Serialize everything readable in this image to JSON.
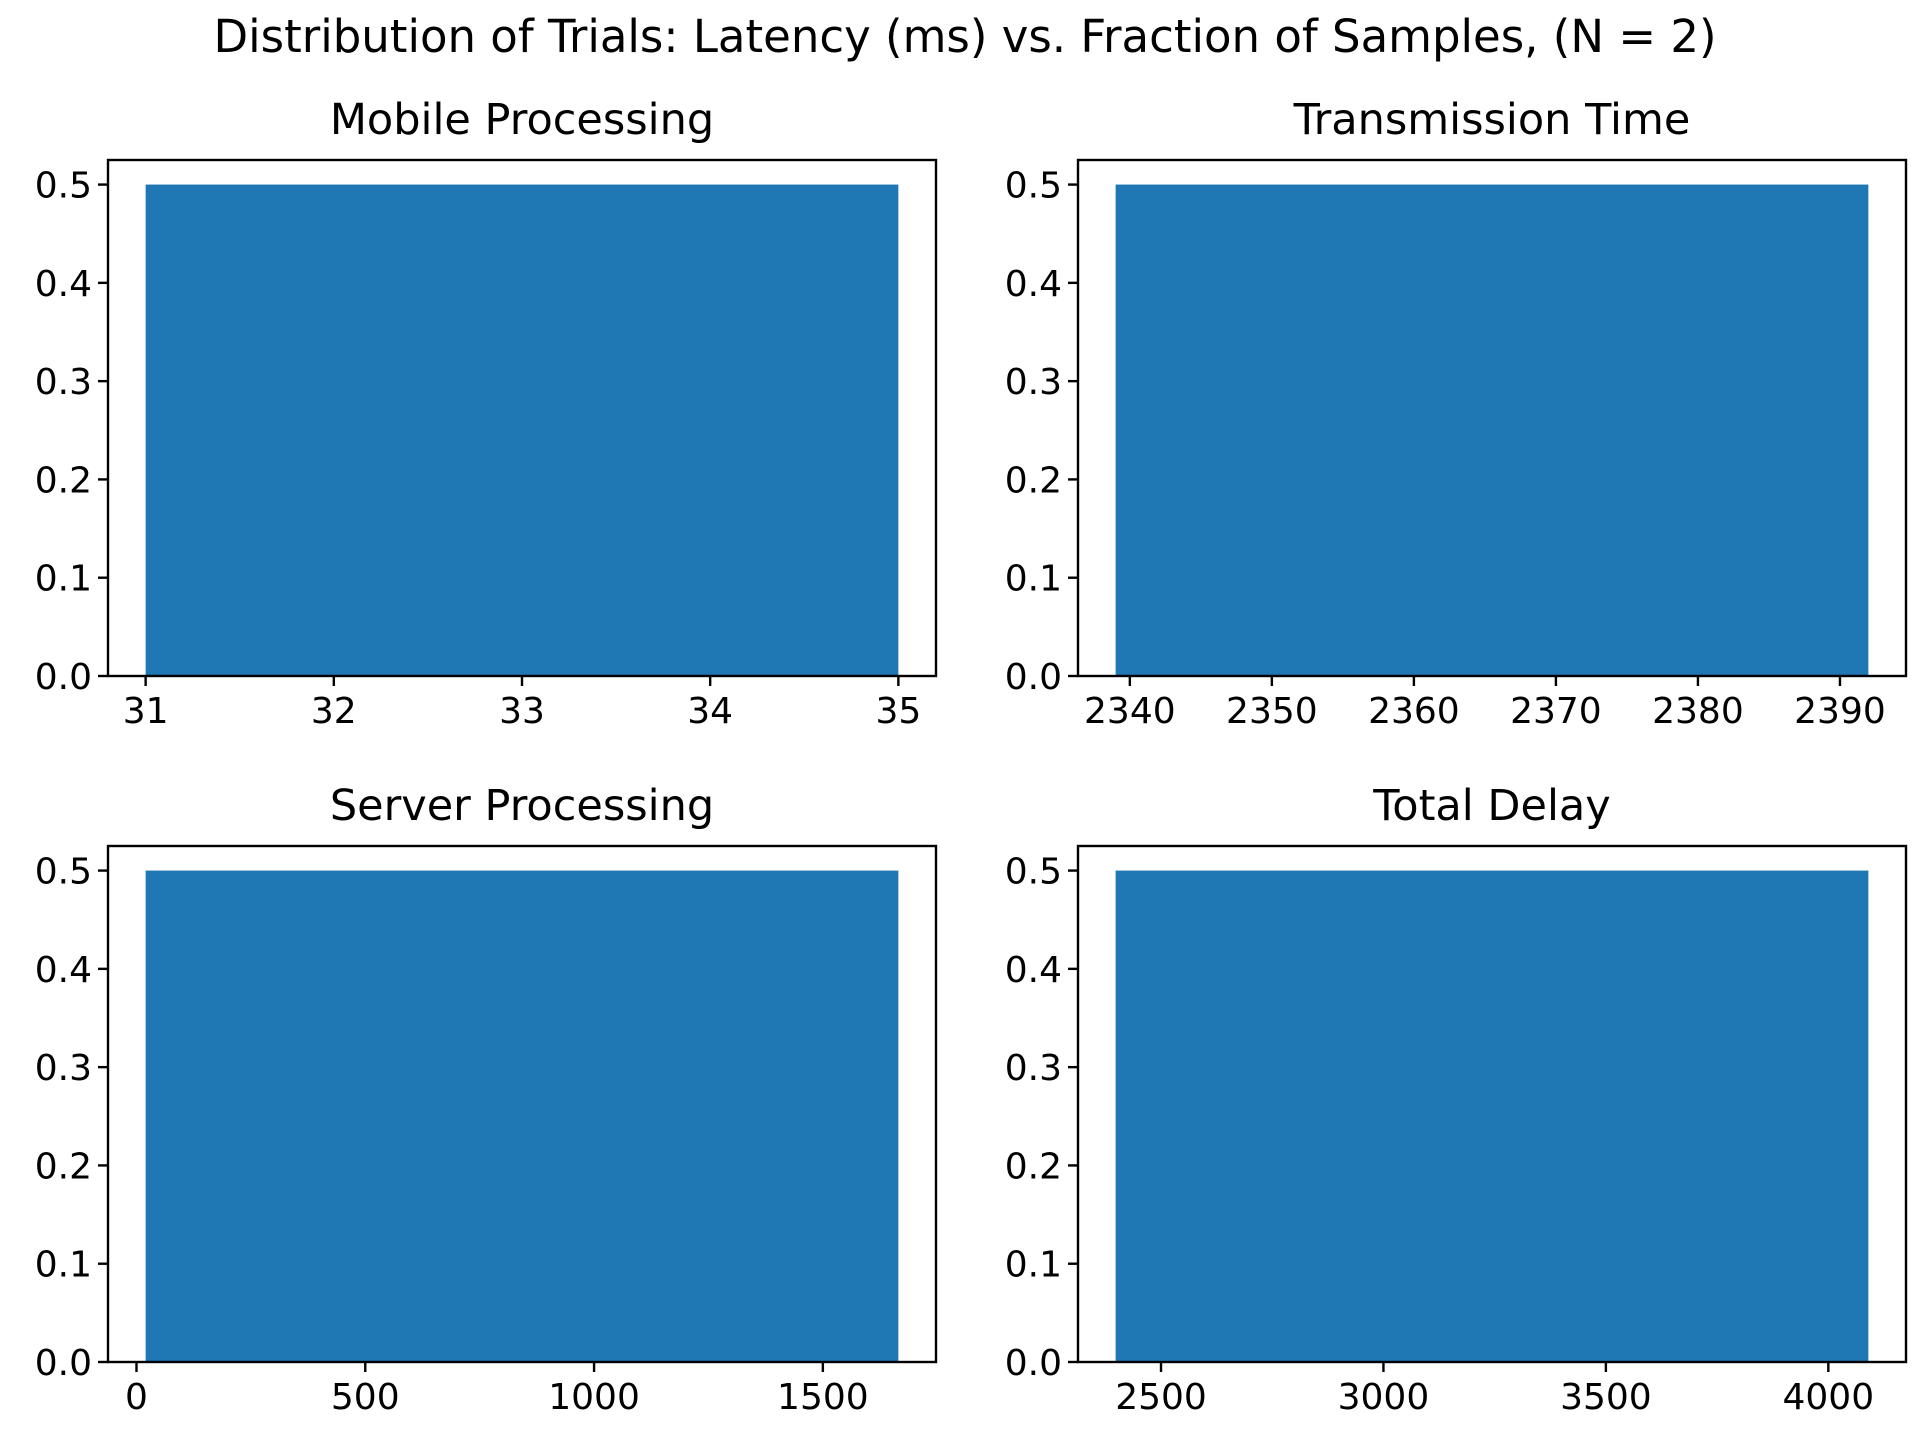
{
  "figure": {
    "suptitle": "Distribution of Trials: Latency (ms) vs. Fraction of Samples, (N = 2)"
  },
  "chart_data": [
    {
      "type": "bar",
      "title": "Mobile Processing",
      "xlabel": "",
      "ylabel": "",
      "bins": [
        {
          "x_start": 31,
          "x_end": 35,
          "value": 0.5
        }
      ],
      "xlim": [
        30.8,
        35.2
      ],
      "ylim": [
        0,
        0.525
      ],
      "xticks": [
        31,
        32,
        33,
        34,
        35
      ],
      "xtick_labels": [
        "31",
        "32",
        "33",
        "34",
        "35"
      ],
      "yticks": [
        0.0,
        0.1,
        0.2,
        0.3,
        0.4,
        0.5
      ],
      "ytick_labels": [
        "0.0",
        "0.1",
        "0.2",
        "0.3",
        "0.4",
        "0.5"
      ],
      "color": "#1f77b4",
      "grid": false
    },
    {
      "type": "bar",
      "title": "Transmission Time",
      "xlabel": "",
      "ylabel": "",
      "bins": [
        {
          "x_start": 2339,
          "x_end": 2392,
          "value": 0.5
        }
      ],
      "xlim": [
        2336.35,
        2394.65
      ],
      "ylim": [
        0,
        0.525
      ],
      "xticks": [
        2340,
        2350,
        2360,
        2370,
        2380,
        2390
      ],
      "xtick_labels": [
        "2340",
        "2350",
        "2360",
        "2370",
        "2380",
        "2390"
      ],
      "yticks": [
        0.0,
        0.1,
        0.2,
        0.3,
        0.4,
        0.5
      ],
      "ytick_labels": [
        "0.0",
        "0.1",
        "0.2",
        "0.3",
        "0.4",
        "0.5"
      ],
      "color": "#1f77b4",
      "grid": false
    },
    {
      "type": "bar",
      "title": "Server Processing",
      "xlabel": "",
      "ylabel": "",
      "bins": [
        {
          "x_start": 20,
          "x_end": 1665,
          "value": 0.5
        }
      ],
      "xlim": [
        -62.25,
        1747.25
      ],
      "ylim": [
        0,
        0.525
      ],
      "xticks": [
        0,
        500,
        1000,
        1500
      ],
      "xtick_labels": [
        "0",
        "500",
        "1000",
        "1500"
      ],
      "yticks": [
        0.0,
        0.1,
        0.2,
        0.3,
        0.4,
        0.5
      ],
      "ytick_labels": [
        "0.0",
        "0.1",
        "0.2",
        "0.3",
        "0.4",
        "0.5"
      ],
      "color": "#1f77b4",
      "grid": false
    },
    {
      "type": "bar",
      "title": "Total Delay",
      "xlabel": "",
      "ylabel": "",
      "bins": [
        {
          "x_start": 2398,
          "x_end": 4090,
          "value": 0.5
        }
      ],
      "xlim": [
        2313.4,
        4174.6
      ],
      "ylim": [
        0,
        0.525
      ],
      "xticks": [
        2500,
        3000,
        3500,
        4000
      ],
      "xtick_labels": [
        "2500",
        "3000",
        "3500",
        "4000"
      ],
      "yticks": [
        0.0,
        0.1,
        0.2,
        0.3,
        0.4,
        0.5
      ],
      "ytick_labels": [
        "0.0",
        "0.1",
        "0.2",
        "0.3",
        "0.4",
        "0.5"
      ],
      "color": "#1f77b4",
      "grid": false
    }
  ]
}
